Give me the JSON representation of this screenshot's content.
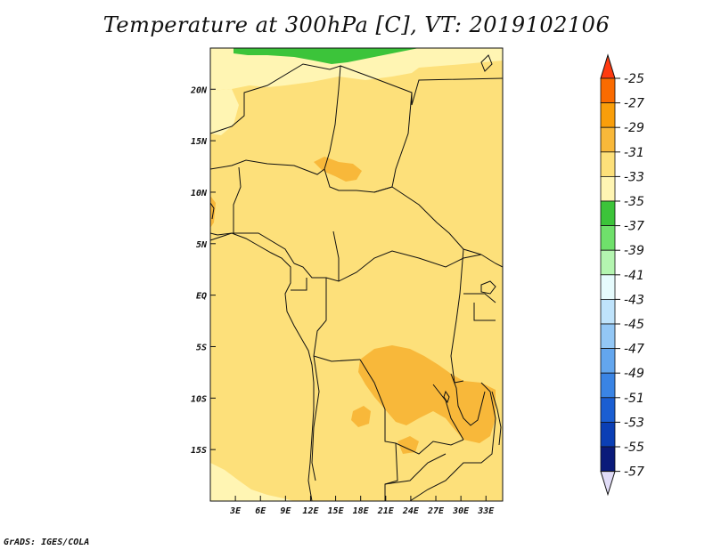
{
  "title": "Temperature at 300hPa [C], VT: 2019102106",
  "credit": "GrADS: IGES/COLA",
  "map": {
    "lon_range": [
      0,
      35
    ],
    "lat_range": [
      -20,
      24
    ],
    "lon_ticks": [
      {
        "v": 3,
        "label": "3E"
      },
      {
        "v": 6,
        "label": "6E"
      },
      {
        "v": 9,
        "label": "9E"
      },
      {
        "v": 12,
        "label": "12E"
      },
      {
        "v": 15,
        "label": "15E"
      },
      {
        "v": 18,
        "label": "18E"
      },
      {
        "v": 21,
        "label": "21E"
      },
      {
        "v": 24,
        "label": "24E"
      },
      {
        "v": 27,
        "label": "27E"
      },
      {
        "v": 30,
        "label": "30E"
      },
      {
        "v": 33,
        "label": "33E"
      }
    ],
    "lat_ticks": [
      {
        "v": 20,
        "label": "20N"
      },
      {
        "v": 15,
        "label": "15N"
      },
      {
        "v": 10,
        "label": "10N"
      },
      {
        "v": 5,
        "label": "5N"
      },
      {
        "v": 0,
        "label": "EQ"
      },
      {
        "v": -5,
        "label": "5S"
      },
      {
        "v": -10,
        "label": "10S"
      },
      {
        "v": -15,
        "label": "15S"
      }
    ],
    "background_color": "#fde07a"
  },
  "colorbar": {
    "labels": [
      "-25",
      "-27",
      "-29",
      "-31",
      "-33",
      "-35",
      "-37",
      "-39",
      "-41",
      "-43",
      "-45",
      "-47",
      "-49",
      "-51",
      "-53",
      "-55",
      "-57"
    ],
    "colors": [
      "#ff3a10",
      "#fa6b00",
      "#f99e0a",
      "#f8b83a",
      "#fde07a",
      "#fff5b3",
      "#3cc43a",
      "#6fe06b",
      "#b4f5b0",
      "#e6fbfd",
      "#bfe3fb",
      "#93c7f5",
      "#63a6ee",
      "#3a84e4",
      "#1a5ed2",
      "#0b3fb5",
      "#0a1a7a",
      "#e1dcf7"
    ]
  }
}
